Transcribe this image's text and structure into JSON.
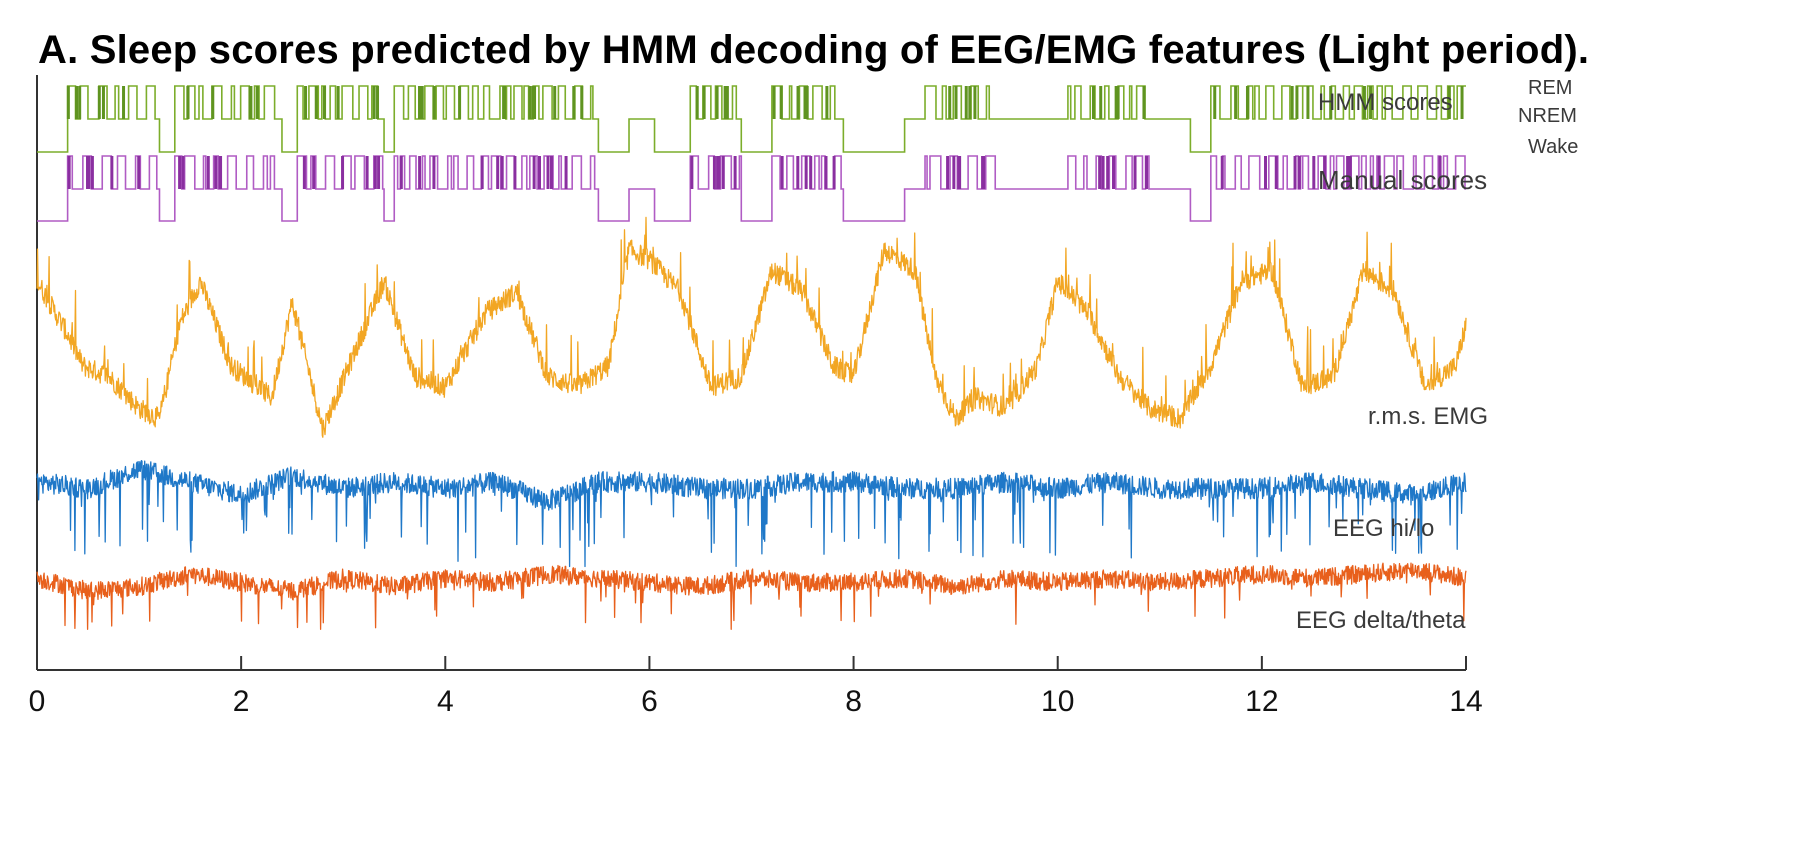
{
  "title": "A. Sleep scores predicted by HMM decoding of  EEG/EMG features (Light period).",
  "chart_data": {
    "type": "line",
    "title": "A. Sleep scores predicted by HMM decoding of  EEG/EMG features (Light period).",
    "xlabel": "",
    "ylabel": "",
    "xlim": [
      0,
      14
    ],
    "x_ticks": [
      0,
      2,
      4,
      6,
      8,
      10,
      12,
      14
    ],
    "grid": false,
    "legend": "none",
    "state_labels": [
      "REM",
      "NREM",
      "Wake"
    ],
    "series": [
      {
        "name": "HMM scores",
        "kind": "hypnogram",
        "color": "#7cad2b",
        "dark_color": "#5f9420",
        "segments": [
          [
            0.0,
            0.3,
            "Wake"
          ],
          [
            0.3,
            1.2,
            "REM"
          ],
          [
            1.2,
            1.35,
            "Wake"
          ],
          [
            1.35,
            2.4,
            "REM"
          ],
          [
            2.4,
            2.55,
            "Wake"
          ],
          [
            2.55,
            3.4,
            "REM"
          ],
          [
            3.4,
            3.5,
            "Wake"
          ],
          [
            3.5,
            4.6,
            "REM"
          ],
          [
            4.6,
            5.5,
            "REM"
          ],
          [
            5.5,
            5.8,
            "Wake"
          ],
          [
            5.8,
            6.05,
            "NREM"
          ],
          [
            6.05,
            6.4,
            "Wake"
          ],
          [
            6.4,
            6.9,
            "REM"
          ],
          [
            6.9,
            7.2,
            "Wake"
          ],
          [
            7.2,
            7.9,
            "REM"
          ],
          [
            7.9,
            8.5,
            "Wake"
          ],
          [
            8.5,
            8.7,
            "NREM"
          ],
          [
            8.7,
            9.4,
            "REM"
          ],
          [
            9.4,
            10.1,
            "NREM"
          ],
          [
            10.1,
            10.9,
            "REM"
          ],
          [
            10.9,
            11.3,
            "NREM"
          ],
          [
            11.3,
            11.5,
            "Wake"
          ],
          [
            11.5,
            12.4,
            "REM"
          ],
          [
            12.4,
            14.0,
            "REM"
          ]
        ]
      },
      {
        "name": "Manual scores",
        "kind": "hypnogram",
        "color": "#b05cc4",
        "dark_color": "#8a2fa0",
        "segments": [
          [
            0.0,
            0.3,
            "Wake"
          ],
          [
            0.3,
            1.2,
            "REM"
          ],
          [
            1.2,
            1.35,
            "Wake"
          ],
          [
            1.35,
            2.4,
            "REM"
          ],
          [
            2.4,
            2.55,
            "Wake"
          ],
          [
            2.55,
            3.4,
            "REM"
          ],
          [
            3.4,
            3.5,
            "Wake"
          ],
          [
            3.5,
            4.6,
            "REM"
          ],
          [
            4.6,
            5.5,
            "REM"
          ],
          [
            5.5,
            5.8,
            "Wake"
          ],
          [
            5.8,
            6.05,
            "NREM"
          ],
          [
            6.05,
            6.4,
            "Wake"
          ],
          [
            6.4,
            6.9,
            "REM"
          ],
          [
            6.9,
            7.2,
            "Wake"
          ],
          [
            7.2,
            7.9,
            "REM"
          ],
          [
            7.9,
            8.5,
            "Wake"
          ],
          [
            8.5,
            8.7,
            "NREM"
          ],
          [
            8.7,
            9.4,
            "REM"
          ],
          [
            9.4,
            10.1,
            "NREM"
          ],
          [
            10.1,
            10.9,
            "REM"
          ],
          [
            10.9,
            11.3,
            "NREM"
          ],
          [
            11.3,
            11.5,
            "Wake"
          ],
          [
            11.5,
            12.4,
            "REM"
          ],
          [
            12.4,
            14.0,
            "REM"
          ]
        ]
      },
      {
        "name": "r.m.s. EMG",
        "kind": "signal",
        "color": "#f2a623",
        "x": [
          0.0,
          0.3,
          0.45,
          0.7,
          1.0,
          1.2,
          1.4,
          1.6,
          1.9,
          2.3,
          2.5,
          2.8,
          3.1,
          3.4,
          3.7,
          4.0,
          4.4,
          4.7,
          5.0,
          5.3,
          5.6,
          5.8,
          6.0,
          6.3,
          6.6,
          6.9,
          7.2,
          7.5,
          7.8,
          8.0,
          8.3,
          8.6,
          8.8,
          9.0,
          9.2,
          9.5,
          9.8,
          10.0,
          10.3,
          10.6,
          10.9,
          11.2,
          11.5,
          11.8,
          12.1,
          12.4,
          12.7,
          13.0,
          13.3,
          13.6,
          13.9,
          14.0
        ],
        "y": [
          0.75,
          0.5,
          0.35,
          0.3,
          0.15,
          0.1,
          0.55,
          0.75,
          0.35,
          0.2,
          0.65,
          0.05,
          0.4,
          0.75,
          0.3,
          0.25,
          0.6,
          0.7,
          0.3,
          0.25,
          0.35,
          0.9,
          0.85,
          0.7,
          0.25,
          0.3,
          0.8,
          0.7,
          0.35,
          0.3,
          0.9,
          0.8,
          0.3,
          0.1,
          0.2,
          0.15,
          0.35,
          0.75,
          0.6,
          0.3,
          0.15,
          0.1,
          0.35,
          0.75,
          0.8,
          0.25,
          0.3,
          0.8,
          0.7,
          0.25,
          0.35,
          0.55
        ]
      },
      {
        "name": "EEG hi/lo",
        "kind": "signal",
        "color": "#1f78c8",
        "x": [
          0.0,
          0.5,
          1.0,
          1.5,
          2.0,
          2.5,
          3.0,
          3.5,
          4.0,
          4.5,
          5.0,
          5.5,
          6.0,
          6.5,
          7.0,
          7.5,
          8.0,
          8.5,
          9.0,
          9.5,
          10.0,
          10.5,
          11.0,
          11.5,
          12.0,
          12.5,
          13.0,
          13.5,
          14.0
        ],
        "y": [
          0.6,
          0.55,
          0.7,
          0.6,
          0.5,
          0.65,
          0.55,
          0.6,
          0.55,
          0.6,
          0.45,
          0.6,
          0.6,
          0.55,
          0.55,
          0.6,
          0.6,
          0.55,
          0.55,
          0.6,
          0.55,
          0.6,
          0.55,
          0.55,
          0.55,
          0.6,
          0.55,
          0.5,
          0.6
        ]
      },
      {
        "name": "EEG delta/theta",
        "kind": "signal",
        "color": "#e8601c",
        "x": [
          0.0,
          0.5,
          1.0,
          1.5,
          2.0,
          2.5,
          3.0,
          3.5,
          4.0,
          4.5,
          5.0,
          5.5,
          6.0,
          6.5,
          7.0,
          7.5,
          8.0,
          8.5,
          9.0,
          9.5,
          10.0,
          10.5,
          11.0,
          11.5,
          12.0,
          12.5,
          13.0,
          13.5,
          14.0
        ],
        "y": [
          0.55,
          0.4,
          0.45,
          0.6,
          0.5,
          0.4,
          0.55,
          0.45,
          0.55,
          0.5,
          0.6,
          0.55,
          0.5,
          0.45,
          0.55,
          0.5,
          0.5,
          0.55,
          0.45,
          0.55,
          0.5,
          0.55,
          0.5,
          0.55,
          0.6,
          0.55,
          0.6,
          0.65,
          0.55
        ]
      }
    ]
  }
}
